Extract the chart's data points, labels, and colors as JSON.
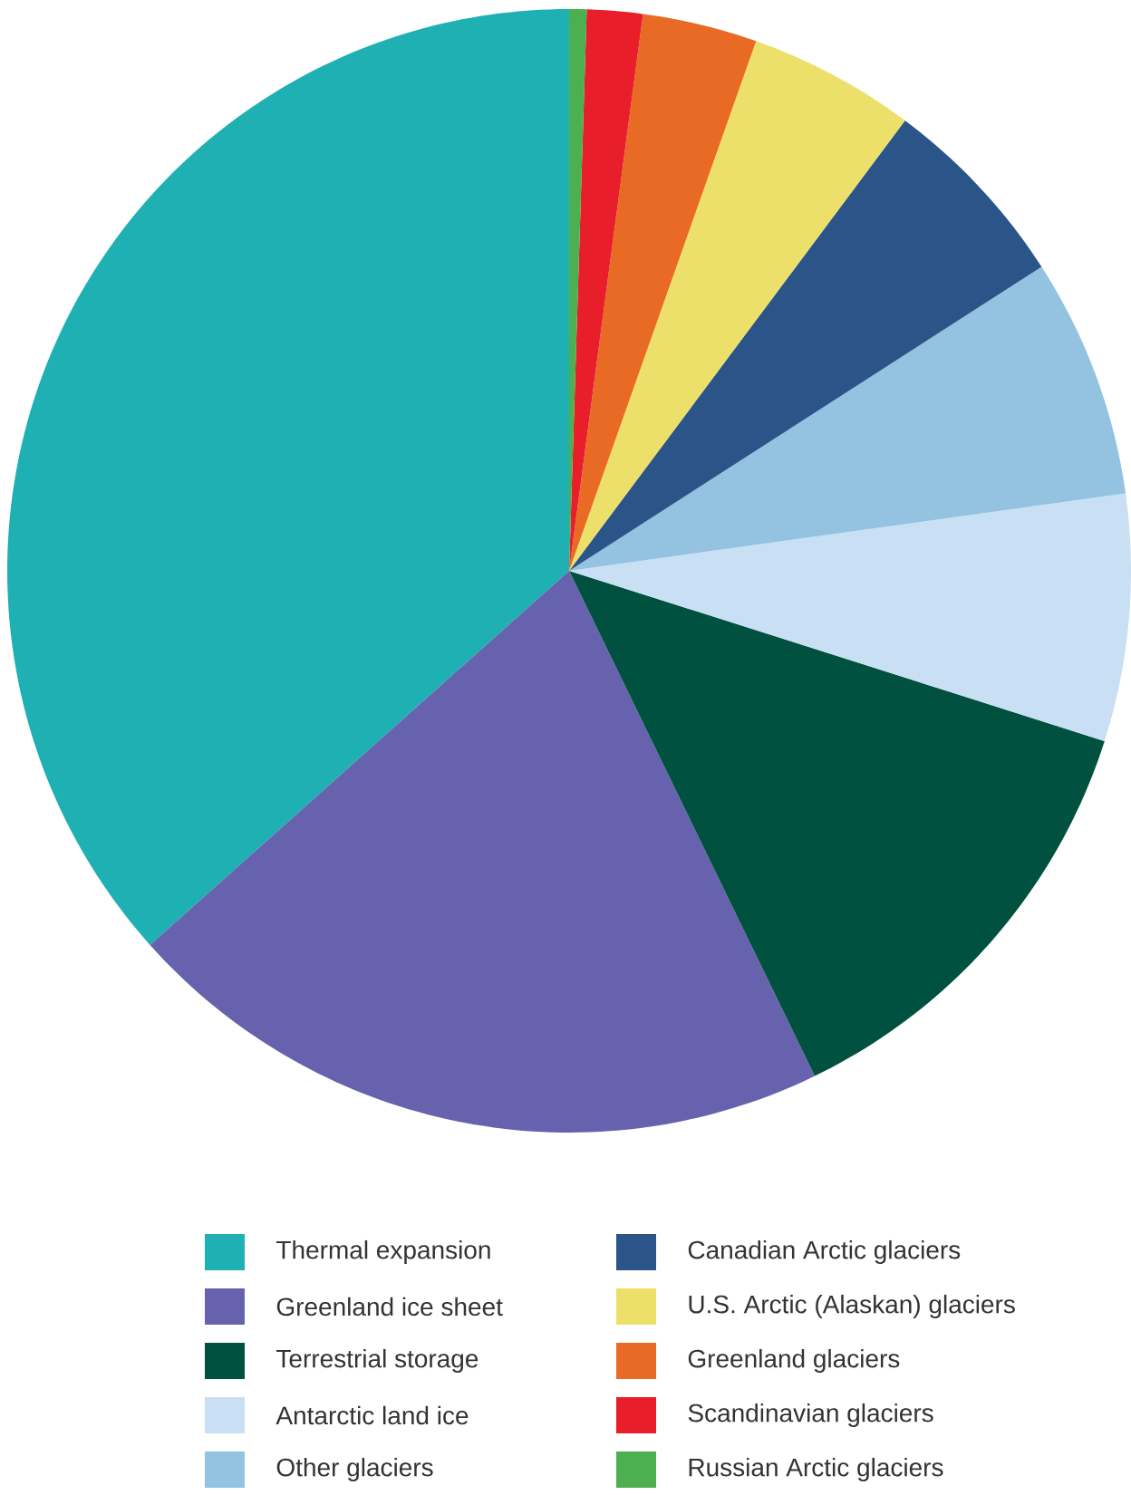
{
  "chart_data": {
    "type": "pie",
    "categories": [
      "Thermal expansion",
      "Greenland ice sheet",
      "Terrestrial storage",
      "Antarctic land ice",
      "Other glaciers",
      "Canadian Arctic glaciers",
      "U.S. Arctic (Alaskan) glaciers",
      "Greenland glaciers",
      "Scandinavian glaciers",
      "Russian Arctic glaciers"
    ],
    "values": [
      36.6,
      20.6,
      12.9,
      7.1,
      6.9,
      5.7,
      4.8,
      3.3,
      1.6,
      0.5
    ],
    "colors": [
      "#1fb0b3",
      "#6762ad",
      "#00513f",
      "#c9dff3",
      "#93c3e0",
      "#2b5488",
      "#ece06a",
      "#e86a24",
      "#e81f2a",
      "#4caf50"
    ],
    "legend": "bottom"
  }
}
